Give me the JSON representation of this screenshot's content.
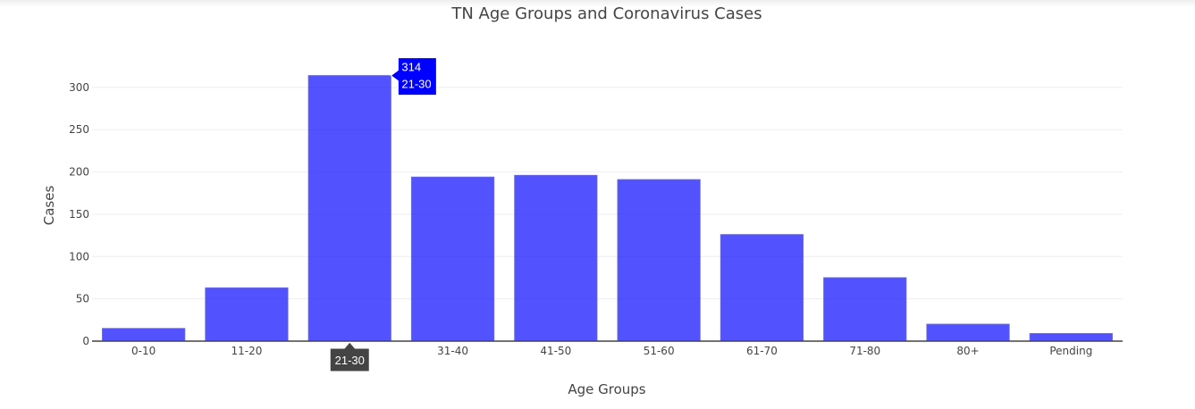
{
  "chart_data": {
    "type": "bar",
    "title": "TN Age Groups and Coronavirus Cases",
    "xlabel": "Age Groups",
    "ylabel": "Cases",
    "categories": [
      "0-10",
      "11-20",
      "21-30",
      "31-40",
      "41-50",
      "51-60",
      "61-70",
      "71-80",
      "80+",
      "Pending"
    ],
    "values": [
      15,
      63,
      314,
      194,
      196,
      191,
      126,
      75,
      20,
      9
    ],
    "ylim": [
      0,
      340
    ],
    "yticks": [
      0,
      50,
      100,
      150,
      200,
      250,
      300
    ],
    "grid": true,
    "bar_color": "#0000ff"
  },
  "hover": {
    "value_label": "314",
    "category_label": "21-30",
    "x_label": "21-30",
    "color": "#0000ff",
    "axis_tip_color": "#444444"
  }
}
